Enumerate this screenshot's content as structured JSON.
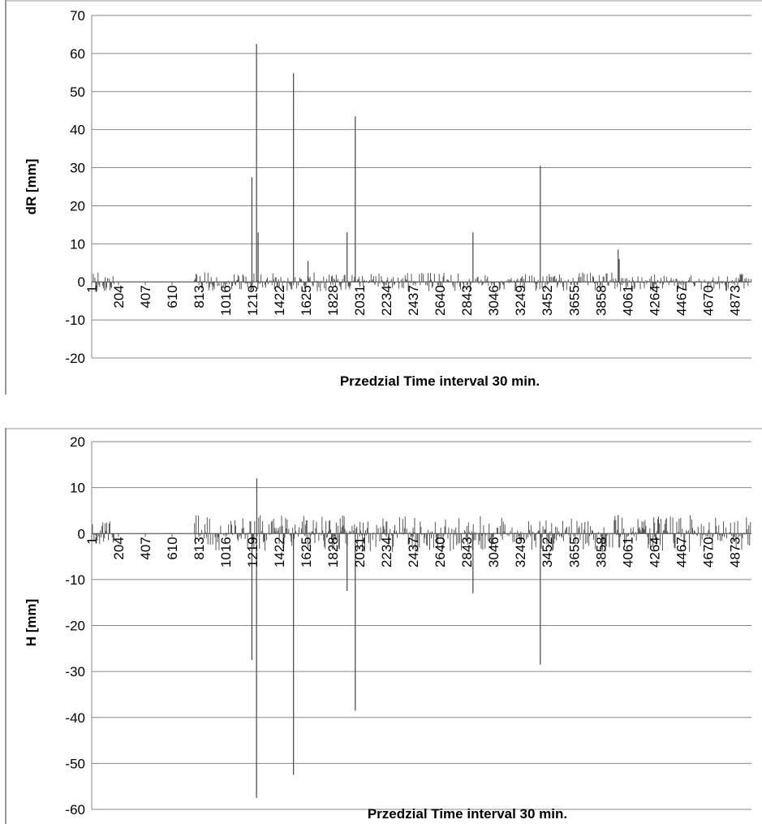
{
  "chart_data": [
    {
      "type": "bar",
      "title": "",
      "xlabel": "Przedzial Time interval  30 min.",
      "ylabel": "dR [mm]",
      "ylim": [
        -20,
        70
      ],
      "yticks": [
        "-20",
        "-10",
        "0",
        "10",
        "20",
        "30",
        "40",
        "50",
        "60",
        "70"
      ],
      "x_tick_labels": [
        "1",
        "204",
        "407",
        "610",
        "813",
        "1016",
        "1219",
        "1422",
        "1625",
        "1828",
        "2031",
        "2234",
        "2437",
        "2640",
        "2843",
        "3046",
        "3249",
        "3452",
        "3655",
        "3858",
        "4061",
        "4264",
        "4467",
        "4670",
        "4873"
      ],
      "xlim": [
        1,
        5000
      ],
      "grid": "horizontal",
      "color": "#555555",
      "gaps": [
        [
          170,
          330
        ],
        [
          430,
          780
        ]
      ],
      "noise_segments": [
        {
          "from": 1,
          "to": 330,
          "amp": 2.5
        },
        {
          "from": 780,
          "to": 5000,
          "amp": 2.5
        }
      ],
      "spikes": [
        {
          "x": 1215,
          "value": 27.5
        },
        {
          "x": 1250,
          "value": 62.5
        },
        {
          "x": 1262,
          "value": 13
        },
        {
          "x": 1530,
          "value": 54.8
        },
        {
          "x": 1640,
          "value": 5.5
        },
        {
          "x": 1936,
          "value": 13
        },
        {
          "x": 1998,
          "value": 43.5
        },
        {
          "x": 2890,
          "value": 13
        },
        {
          "x": 3400,
          "value": 30.5
        },
        {
          "x": 3990,
          "value": 8.5
        },
        {
          "x": 3998,
          "value": 6
        }
      ]
    },
    {
      "type": "bar",
      "title": "",
      "xlabel": "Przedzial Time interval  30 min.",
      "ylabel": "H [mm]",
      "ylim": [
        -60,
        20
      ],
      "yticks": [
        "-60",
        "-50",
        "-40",
        "-30",
        "-20",
        "-10",
        "0",
        "10",
        "20"
      ],
      "x_tick_labels": [
        "1",
        "204",
        "407",
        "610",
        "813",
        "1016",
        "1219",
        "1422",
        "1625",
        "1828",
        "2031",
        "2234",
        "2437",
        "2640",
        "2843",
        "3046",
        "3249",
        "3452",
        "3655",
        "3858",
        "4061",
        "4264",
        "4467",
        "4670",
        "4873"
      ],
      "xlim": [
        1,
        5000
      ],
      "grid": "horizontal",
      "color": "#555555",
      "gaps": [
        [
          170,
          330
        ],
        [
          430,
          780
        ]
      ],
      "noise_segments": [
        {
          "from": 1,
          "to": 330,
          "amp": 3.5
        },
        {
          "from": 780,
          "to": 5000,
          "amp": 4
        }
      ],
      "spikes": [
        {
          "x": 1215,
          "value": -27.5
        },
        {
          "x": 1250,
          "value": -57.5
        },
        {
          "x": 1252,
          "value": 12
        },
        {
          "x": 1530,
          "value": -52.5
        },
        {
          "x": 1936,
          "value": -12.5
        },
        {
          "x": 1998,
          "value": -38.5
        },
        {
          "x": 2890,
          "value": -13
        },
        {
          "x": 3400,
          "value": -28.5
        },
        {
          "x": 3990,
          "value": 4
        }
      ]
    }
  ]
}
